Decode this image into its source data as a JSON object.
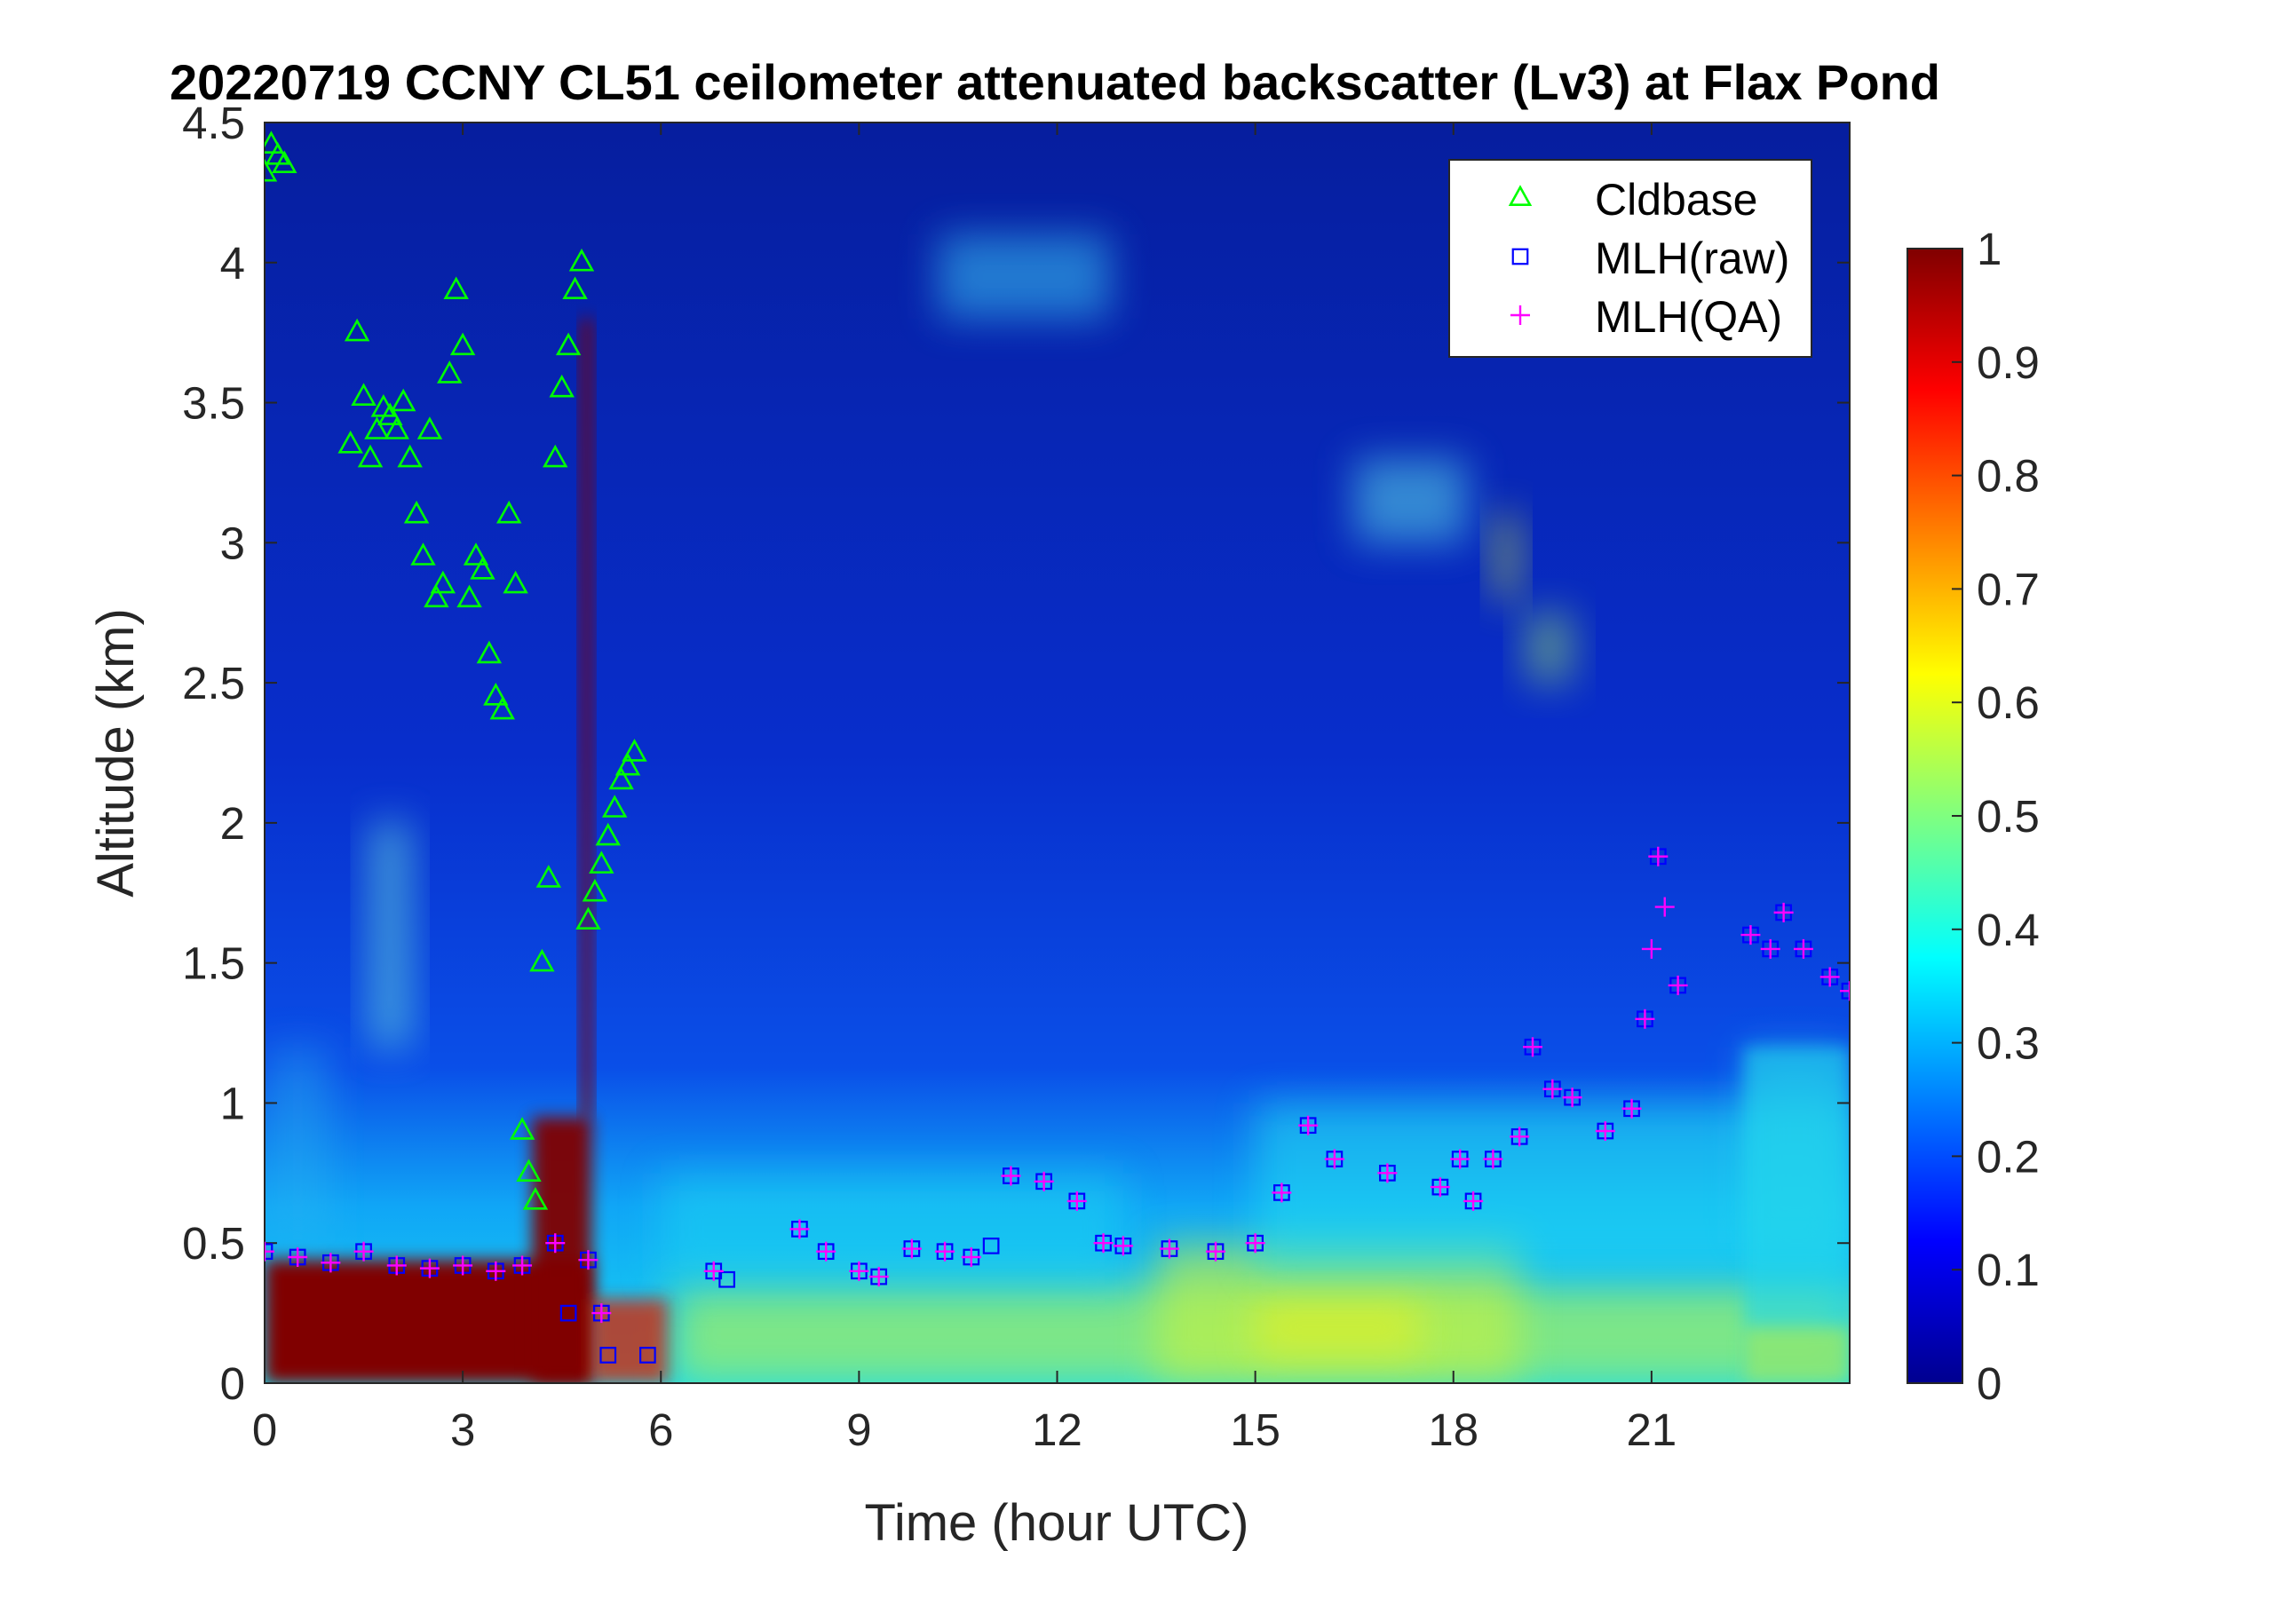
{
  "chart_data": {
    "type": "heatmap",
    "title": "20220719 CCNY CL51 ceilometer attenuated backscatter (Lv3) at Flax Pond",
    "xlabel": "Time (hour UTC)",
    "ylabel": "Altitude (km)",
    "xlim": [
      0,
      24
    ],
    "ylim": [
      0,
      4.5
    ],
    "x_ticks": [
      0,
      3,
      6,
      9,
      12,
      15,
      18,
      21
    ],
    "x_tick_labels": [
      "0",
      "3",
      "6",
      "9",
      "12",
      "15",
      "18",
      "21"
    ],
    "y_ticks": [
      0,
      0.5,
      1,
      1.5,
      2,
      2.5,
      3,
      3.5,
      4,
      4.5
    ],
    "y_tick_labels": [
      "0",
      "0.5",
      "1",
      "1.5",
      "2",
      "2.5",
      "3",
      "3.5",
      "4",
      "4.5"
    ],
    "colorbar": {
      "colormap": "jet",
      "clim": [
        0,
        1
      ],
      "ticks": [
        0,
        0.1,
        0.2,
        0.3,
        0.4,
        0.5,
        0.6,
        0.7,
        0.8,
        0.9,
        1
      ],
      "tick_labels": [
        "0",
        "0.1",
        "0.2",
        "0.3",
        "0.4",
        "0.5",
        "0.6",
        "0.7",
        "0.8",
        "0.9",
        "1"
      ]
    },
    "colors": {
      "cldbase": "#00ff00",
      "mlh_raw": "#0000ff",
      "mlh_qa": "#ff00ff",
      "saturated": "#800000"
    },
    "legend": {
      "position": "top-right",
      "entries": [
        {
          "label": "Cldbase",
          "marker": "triangle",
          "color": "#00ff00"
        },
        {
          "label": "MLH(raw)",
          "marker": "square",
          "color": "#0000ff"
        },
        {
          "label": "MLH(QA)",
          "marker": "plus",
          "color": "#ff00ff"
        }
      ]
    },
    "series": [
      {
        "name": "Cldbase",
        "marker": "triangle",
        "x": [
          0.0,
          0.1,
          0.2,
          0.3,
          1.3,
          1.4,
          1.5,
          1.6,
          1.7,
          1.8,
          1.9,
          2.0,
          2.1,
          2.2,
          2.3,
          2.4,
          2.5,
          2.6,
          2.7,
          2.8,
          2.9,
          3.0,
          3.1,
          3.2,
          3.3,
          3.4,
          3.5,
          3.6,
          3.7,
          3.8,
          3.9,
          4.0,
          4.1,
          4.2,
          4.3,
          4.4,
          4.5,
          4.6,
          4.7,
          4.8,
          4.9,
          5.0,
          5.1,
          5.2,
          5.3,
          5.4,
          5.5,
          5.6
        ],
        "y": [
          4.32,
          4.42,
          4.38,
          4.35,
          3.35,
          3.75,
          3.52,
          3.3,
          3.4,
          3.48,
          3.45,
          3.4,
          3.5,
          3.3,
          3.1,
          2.95,
          3.4,
          2.8,
          2.85,
          3.6,
          3.9,
          3.7,
          2.8,
          2.95,
          2.9,
          2.6,
          2.45,
          2.4,
          3.1,
          2.85,
          0.9,
          0.75,
          0.65,
          1.5,
          1.8,
          3.3,
          3.55,
          3.7,
          3.9,
          4.0,
          1.65,
          1.75,
          1.85,
          1.95,
          2.05,
          2.15,
          2.2,
          2.25
        ]
      },
      {
        "name": "MLH(raw)",
        "marker": "square",
        "x": [
          0.0,
          0.5,
          1.0,
          1.5,
          2.0,
          2.5,
          3.0,
          3.5,
          3.9,
          4.4,
          4.6,
          4.9,
          5.1,
          5.2,
          5.8,
          6.8,
          7.0,
          8.1,
          8.5,
          9.0,
          9.3,
          9.8,
          10.3,
          10.7,
          11.0,
          11.3,
          11.8,
          12.3,
          12.7,
          13.0,
          13.7,
          14.4,
          15.0,
          15.4,
          15.8,
          16.2,
          17.0,
          17.8,
          18.1,
          18.3,
          18.6,
          19.0,
          19.2,
          19.5,
          19.8,
          20.3,
          20.7,
          20.9,
          21.1,
          21.4,
          22.5,
          22.8,
          23.0,
          23.3,
          23.7,
          24.0
        ],
        "y": [
          0.47,
          0.45,
          0.43,
          0.47,
          0.42,
          0.41,
          0.42,
          0.4,
          0.42,
          0.5,
          0.25,
          0.44,
          0.25,
          0.1,
          0.1,
          0.4,
          0.37,
          0.55,
          0.47,
          0.4,
          0.38,
          0.48,
          0.47,
          0.45,
          0.49,
          0.74,
          0.72,
          0.65,
          0.5,
          0.49,
          0.48,
          0.47,
          0.5,
          0.68,
          0.92,
          0.8,
          0.75,
          0.7,
          0.8,
          0.65,
          0.8,
          0.88,
          1.2,
          1.05,
          1.02,
          0.9,
          0.98,
          1.3,
          1.88,
          1.42,
          1.6,
          1.55,
          1.68,
          1.55,
          1.45,
          1.4
        ]
      },
      {
        "name": "MLH(QA)",
        "marker": "plus",
        "x": [
          0.0,
          0.5,
          1.0,
          1.5,
          2.0,
          2.5,
          3.0,
          3.5,
          3.9,
          4.4,
          4.9,
          5.1,
          6.8,
          8.1,
          8.5,
          9.0,
          9.3,
          9.8,
          10.3,
          10.7,
          11.3,
          11.8,
          12.3,
          12.7,
          13.0,
          13.7,
          14.4,
          15.0,
          15.4,
          15.8,
          16.2,
          17.0,
          17.8,
          18.1,
          18.3,
          18.6,
          19.0,
          19.2,
          19.5,
          19.8,
          20.3,
          20.7,
          20.9,
          21.0,
          21.1,
          21.2,
          21.4,
          22.5,
          22.8,
          23.0,
          23.3,
          23.7,
          24.0
        ],
        "y": [
          0.47,
          0.45,
          0.43,
          0.47,
          0.42,
          0.41,
          0.42,
          0.4,
          0.42,
          0.5,
          0.44,
          0.25,
          0.4,
          0.55,
          0.47,
          0.4,
          0.38,
          0.48,
          0.47,
          0.45,
          0.74,
          0.72,
          0.65,
          0.5,
          0.49,
          0.48,
          0.47,
          0.5,
          0.68,
          0.92,
          0.8,
          0.75,
          0.7,
          0.8,
          0.65,
          0.8,
          0.88,
          1.2,
          1.05,
          1.02,
          0.9,
          0.98,
          1.3,
          1.55,
          1.88,
          1.7,
          1.42,
          1.6,
          1.55,
          1.68,
          1.55,
          1.45,
          1.4
        ]
      }
    ]
  }
}
